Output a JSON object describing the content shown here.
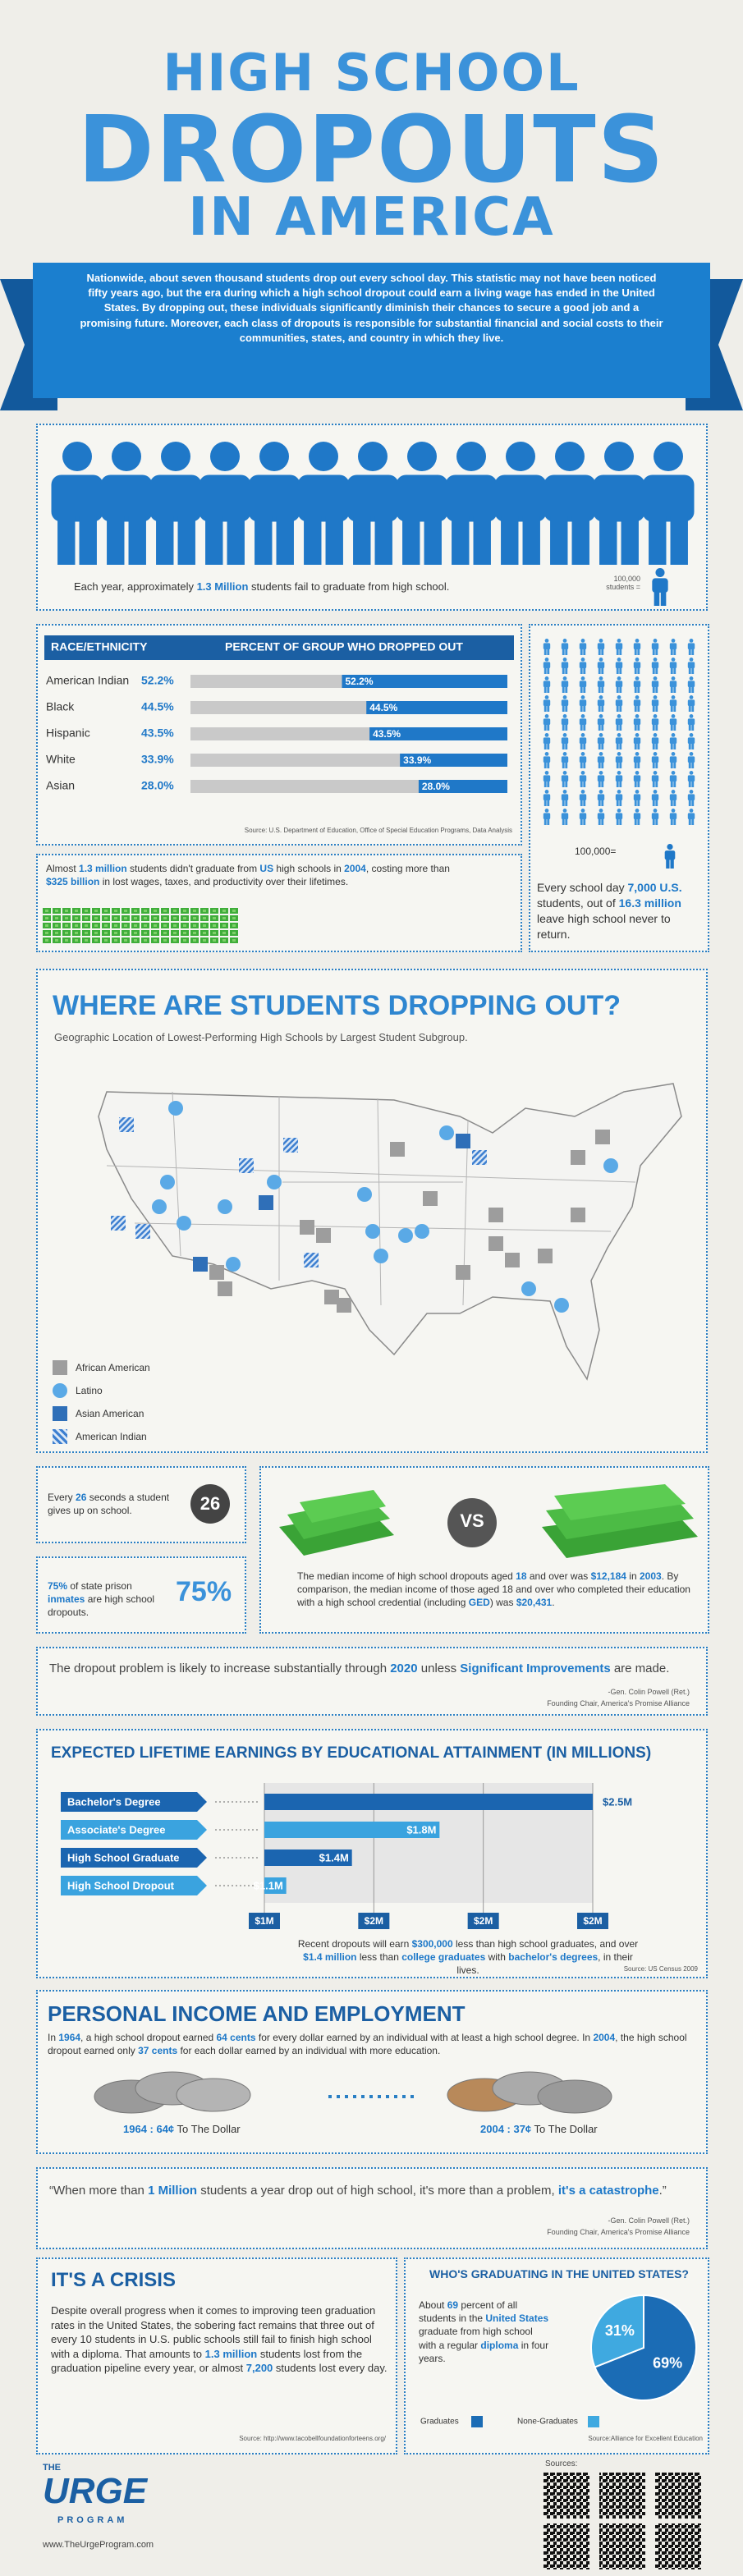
{
  "header": {
    "title_lines": [
      "HIGH SCHOOL",
      "DROPOUTS",
      "IN AMERICA"
    ],
    "intro": "Nationwide, about seven thousand students drop out every school day. This statistic may not have been noticed fifty years ago, but the era during which a high school dropout could earn a living wage has ended in the United States. By dropping out, these individuals significantly diminish their chances to secure a good job and a promising future. Moreover, each class of dropouts is responsible for substantial financial and social costs to their communities, states, and country in which they live."
  },
  "students": {
    "icons": 13,
    "text": [
      "Each year, approximately ",
      {
        "em": "1.3 Million"
      },
      " students fail to graduate from high school."
    ],
    "legend": "100,000 students ="
  },
  "daily": {
    "icons": 90,
    "legend": "100,000=",
    "text": [
      "Every school day ",
      {
        "em": "7,000 U.S."
      },
      " students, out of ",
      {
        "em": "16.3 million"
      },
      " leave high school never to return."
    ]
  },
  "cost": {
    "text": [
      "Almost ",
      {
        "em": "1.3 million"
      },
      " students didn't graduate from ",
      {
        "em": "US"
      },
      " high schools in ",
      {
        "em": "2004"
      },
      ", costing more than ",
      {
        "em": "$325 billion"
      },
      " in lost wages, taxes, and productivity over their lifetimes."
    ]
  },
  "map": {
    "title": "WHERE ARE STUDENTS DROPPING OUT?",
    "subtitle": "Geographic Location of Lowest-Performing High Schools by Largest Student Subgroup.",
    "legend": [
      "African American",
      "Latino",
      "Asian American",
      "American Indian"
    ]
  },
  "seconds": {
    "text": [
      "Every ",
      {
        "em": "26"
      },
      " seconds a student gives up on school."
    ],
    "badge": "26"
  },
  "inmates": {
    "text": [
      {
        "em": "75%"
      },
      " of state prison ",
      {
        "em": "inmates"
      },
      " are high school dropouts."
    ],
    "big": "75%"
  },
  "income": {
    "vs": "VS",
    "text": [
      "The median income of high school dropouts aged ",
      {
        "em": "18"
      },
      " and over was ",
      {
        "em": "$12,184"
      },
      " in ",
      {
        "em": "2003"
      },
      ". By comparison, the median income of those aged 18 and over who completed their education with a high school credential (including ",
      {
        "em": "GED"
      },
      ") was ",
      {
        "em": "$20,431"
      },
      "."
    ]
  },
  "quote1": {
    "text": [
      "The dropout problem is likely to increase substantially through ",
      {
        "em": "2020"
      },
      " unless ",
      {
        "em": "Significant Improvements"
      },
      " are made."
    ],
    "author": "-Gen. Colin Powell (Ret.)",
    "role": "Founding Chair, America's Promise Alliance"
  },
  "personal": {
    "title": "PERSONAL INCOME AND EMPLOYMENT",
    "text": [
      "In ",
      {
        "em": "1964"
      },
      ", a high school dropout earned ",
      {
        "em": "64 cents"
      },
      " for every dollar earned by an individual with at least a high school degree. In ",
      {
        "em": "2004"
      },
      ", the high school dropout earned only ",
      {
        "em": "37 cents"
      },
      " for each dollar earned by an individual with more education."
    ],
    "caption_1964": [
      {
        "em": "1964 : 64¢"
      },
      " To The Dollar"
    ],
    "caption_2004": [
      {
        "em": "2004 : 37¢"
      },
      " To The Dollar"
    ]
  },
  "quote2": {
    "text": [
      "“When more than ",
      {
        "em": "1 Million"
      },
      " students a year drop out of high school, it's more than a problem, ",
      {
        "em": "it's a catastrophe"
      },
      ".”"
    ],
    "author": "-Gen. Colin Powell (Ret.)",
    "role": "Founding Chair, America's Promise Alliance"
  },
  "crisis": {
    "title": "IT'S A CRISIS",
    "text": [
      "Despite overall progress when it comes to improving teen graduation rates in the United States, the sobering fact remains that three out of every 10 students in U.S. public schools still fail to finish high school with a diploma. That amounts to ",
      {
        "em": "1.3 million"
      },
      " students lost from the graduation pipeline every year, or almost ",
      {
        "em": "7,200"
      },
      " students lost every day."
    ],
    "source": "Source: http://www.tacobellfoundationforteens.org/"
  },
  "footer": {
    "logo_top": "THE",
    "logo_main": "URGE",
    "logo_bottom": "PROGRAM",
    "url": "www.TheUrgeProgram.com",
    "sources": "Sources:"
  },
  "chart_data": [
    {
      "type": "bar",
      "header": [
        "RACE/ETHNICITY",
        "PERCENT OF GROUP WHO DROPPED OUT"
      ],
      "categories": [
        "American Indian",
        "Black",
        "Hispanic",
        "White",
        "Asian"
      ],
      "values": [
        52.2,
        44.5,
        43.5,
        33.9,
        28.0
      ],
      "value_labels": [
        "52.2%",
        "44.5%",
        "43.5%",
        "33.9%",
        "28.0%"
      ],
      "xlim": [
        0,
        100
      ],
      "color": "#1f78c8",
      "track_color": "#c9c9c9",
      "source": "Source: U.S. Department of Education, Office of Special Education Programs, Data Analysis"
    },
    {
      "type": "bar",
      "title": "EXPECTED LIFETIME EARNINGS BY EDUCATIONAL ATTAINMENT (IN MILLIONS)",
      "categories": [
        "Bachelor's Degree",
        "Associate's Degree",
        "High School Graduate",
        "High School Dropout"
      ],
      "values": [
        2.5,
        1.8,
        1.4,
        1.1
      ],
      "value_labels": [
        "$2.5M",
        "$1.8M",
        "$1.4M",
        "$1.1M"
      ],
      "colors": [
        "#1b65b0",
        "#3aa3df",
        "#1b65b0",
        "#3aa3df"
      ],
      "xlim": [
        1,
        2.5
      ],
      "xticks": [
        {
          "value": 1,
          "label": "$1M"
        },
        {
          "value": 1.5,
          "label": "$2M"
        },
        {
          "value": 2,
          "label": "$2M"
        },
        {
          "value": 2.5,
          "label": "$2M"
        }
      ],
      "grid": true,
      "note": [
        "Recent dropouts will earn ",
        {
          "em": "$300,000"
        },
        " less than high school graduates, and over ",
        {
          "em": "$1.4 million"
        },
        " less than ",
        {
          "em": "college graduates"
        },
        " with ",
        {
          "em": "bachelor's degrees"
        },
        ", in their lives."
      ],
      "source": "Source: US Census 2009"
    },
    {
      "type": "pie",
      "title": "WHO'S GRADUATING IN THE UNITED STATES?",
      "text": [
        "About ",
        {
          "em": "69"
        },
        " percent of all students in the ",
        {
          "em": "United States"
        },
        " graduate from high school with a regular ",
        {
          "em": "diploma"
        },
        " in four years."
      ],
      "categories": [
        "Graduates",
        "None-Graduates"
      ],
      "values": [
        69,
        31
      ],
      "value_labels": [
        "69%",
        "31%"
      ],
      "colors": [
        "#1b6cb5",
        "#3fa9e0"
      ],
      "source": "Source:Alliance for Excellent Education"
    }
  ]
}
